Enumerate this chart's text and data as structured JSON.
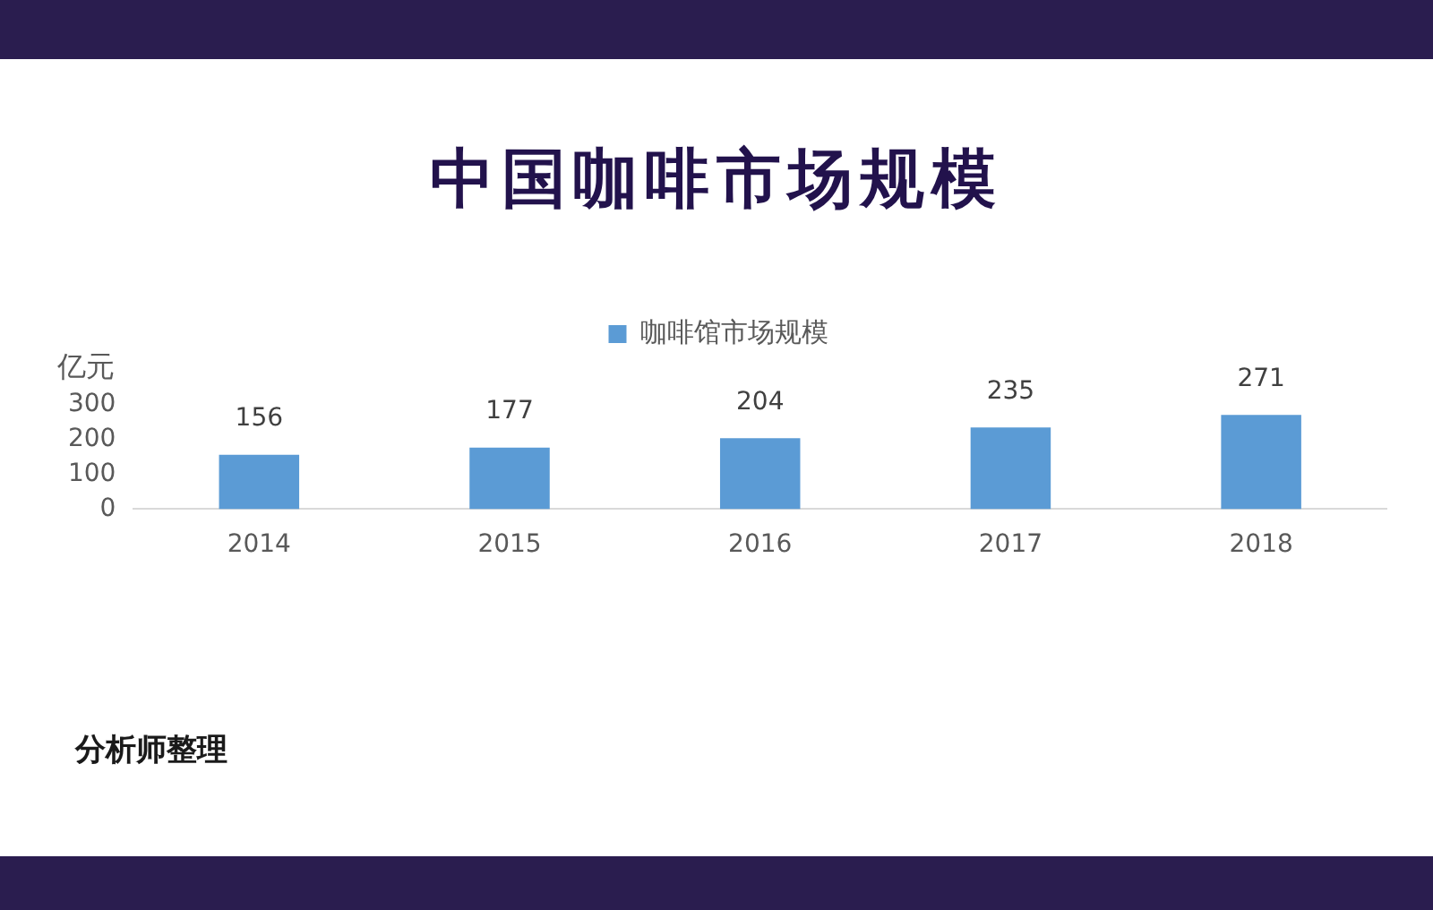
{
  "chart_data": {
    "type": "bar",
    "title": "中国咖啡市场规模",
    "ylabel": "亿元",
    "categories": [
      "2014",
      "2015",
      "2016",
      "2017",
      "2018"
    ],
    "series": [
      {
        "name": "咖啡馆市场规模",
        "color": "#5b9bd5",
        "values": [
          156,
          177,
          204,
          235,
          271
        ]
      }
    ],
    "ylim": [
      0,
      300
    ],
    "yticks": [
      0,
      100,
      200,
      300
    ],
    "data_labels": true,
    "legend": "top",
    "annotations": [
      "分析师整理"
    ]
  }
}
